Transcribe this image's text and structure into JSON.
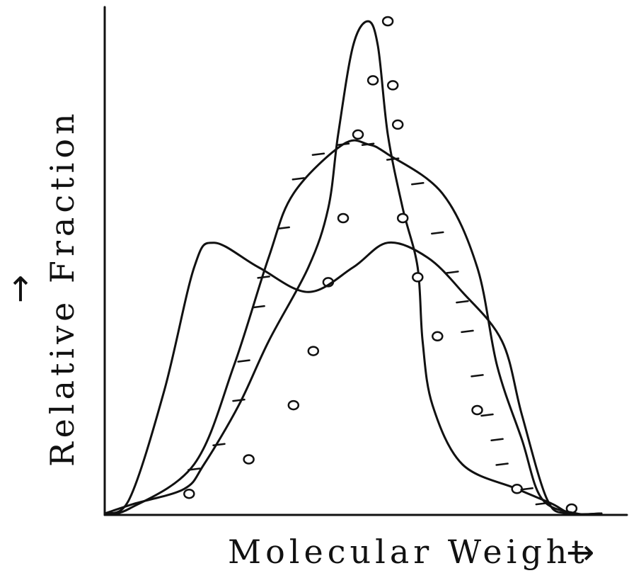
{
  "chart_data": {
    "type": "line",
    "title": "",
    "xlabel": "Molecular Weight",
    "ylabel": "Relative Fraction",
    "x_arrow": "→",
    "y_arrow": "→",
    "grid": false,
    "xlim": [
      0,
      100
    ],
    "ylim": [
      0,
      100
    ],
    "series": [
      {
        "marker": "circle",
        "x": [
          0,
          6,
          16,
          20,
          27,
          33,
          41,
          45,
          47,
          50,
          53,
          55,
          57,
          60,
          63,
          64,
          66,
          72,
          83,
          90,
          94,
          100
        ],
        "y": [
          0,
          2,
          5,
          10,
          22,
          35,
          50,
          62,
          77,
          95,
          100,
          95,
          77,
          62,
          50,
          35,
          22,
          10,
          5,
          2,
          0,
          0
        ],
        "marker_x": [
          17,
          29,
          38,
          42,
          45,
          48,
          51,
          54,
          57,
          58,
          59,
          60,
          63,
          67,
          75,
          83,
          94
        ],
        "marker_y": [
          4,
          11,
          22,
          33,
          47,
          60,
          77,
          88,
          100,
          87,
          79,
          60,
          48,
          36,
          21,
          5,
          1
        ]
      },
      {
        "marker": "tick",
        "x": [
          0,
          5,
          18,
          26,
          33,
          38,
          48,
          53,
          57,
          68,
          75,
          79,
          84,
          88,
          95,
          100
        ],
        "y": [
          0,
          1,
          10,
          30,
          52,
          65,
          75,
          75,
          73,
          65,
          50,
          30,
          15,
          3,
          0,
          0
        ],
        "marker_x": [
          18,
          23,
          27,
          28,
          31,
          32,
          36,
          39,
          43,
          48,
          53,
          58,
          63,
          67,
          70,
          72,
          73,
          75,
          77,
          79,
          80,
          85,
          88
        ],
        "marker_y": [
          9,
          14,
          23,
          31,
          42,
          48,
          58,
          68,
          73,
          75,
          75,
          72,
          67,
          57,
          49,
          43,
          37,
          28,
          20,
          15,
          10,
          5,
          2
        ]
      },
      {
        "marker": "none",
        "x": [
          0,
          5,
          12,
          18,
          22,
          31,
          41,
          50,
          57,
          65,
          72,
          80,
          84,
          89,
          93,
          100
        ],
        "y": [
          0,
          3,
          25,
          50,
          55,
          50,
          45,
          50,
          55,
          52,
          45,
          35,
          20,
          3,
          0,
          0
        ]
      }
    ]
  }
}
